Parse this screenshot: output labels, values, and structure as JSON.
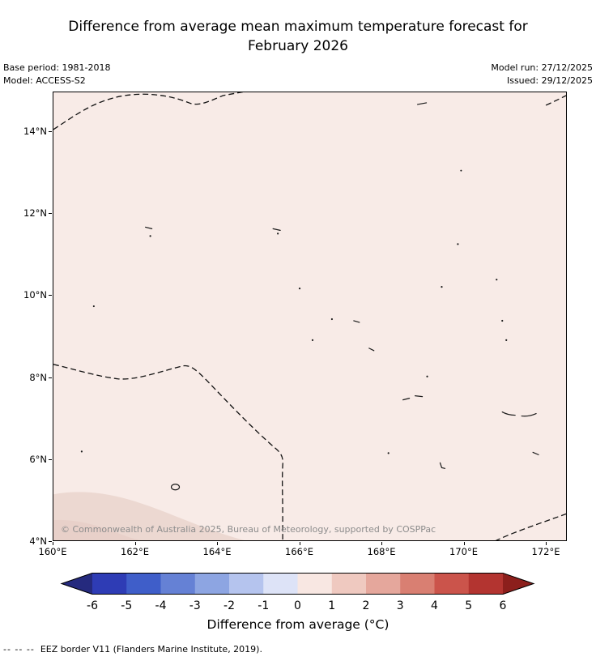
{
  "title": {
    "line1": "Difference from average mean maximum temperature forecast for",
    "line2": "February 2026"
  },
  "meta": {
    "base_period": "Base period: 1981-2018",
    "model": "Model: ACCESS-S2",
    "model_run": "Model run: 27/12/2025",
    "issued": "Issued: 29/12/2025"
  },
  "map": {
    "copyright": "© Commonwealth of Australia 2025, Bureau of Meteorology, supported by COSPPac",
    "lat_ticks": [
      "14°N",
      "12°N",
      "10°N",
      "8°N",
      "6°N",
      "4°N"
    ],
    "lon_ticks": [
      "160°E",
      "162°E",
      "164°E",
      "166°E",
      "168°E",
      "170°E",
      "172°E"
    ]
  },
  "colorbar": {
    "label": "Difference from average (°C)",
    "ticks": [
      "-6",
      "-5",
      "-4",
      "-3",
      "-2",
      "-1",
      "0",
      "1",
      "2",
      "3",
      "4",
      "5",
      "6"
    ],
    "colors": [
      "#2e3cb5",
      "#3f5ec9",
      "#6581d5",
      "#8da5e2",
      "#b5c4ee",
      "#dde3f7",
      "#f8e7e2",
      "#efc9c0",
      "#e5a79c",
      "#d97f72",
      "#cb544b",
      "#b33430"
    ],
    "arrow_left": "#252a7e",
    "arrow_right": "#8c1f1c"
  },
  "footer": {
    "dash_sample": "--  --  --",
    "label": "EEZ border V11 (Flanders Marine Institute, 2019)."
  },
  "chart_data": {
    "type": "heatmap",
    "title": "Difference from average mean maximum temperature forecast for February 2026",
    "subtitle": "Model: ACCESS-S2, base period 1981-2018, model run 27/12/2025, issued 29/12/2025",
    "x_axis": {
      "label": "",
      "ticks": [
        "160°E",
        "162°E",
        "164°E",
        "166°E",
        "168°E",
        "170°E",
        "172°E"
      ],
      "range_deg_east": [
        160,
        172.5
      ]
    },
    "y_axis": {
      "label": "",
      "ticks": [
        "14°N",
        "12°N",
        "10°N",
        "8°N",
        "6°N",
        "4°N"
      ],
      "range_deg_north": [
        4,
        15
      ]
    },
    "colorbar": {
      "label": "Difference from average (°C)",
      "tick_values": [
        -6,
        -5,
        -4,
        -3,
        -2,
        -1,
        0,
        1,
        2,
        3,
        4,
        5,
        6
      ],
      "extend": "both"
    },
    "field_summary": "Nearly uniform positive anomaly of approximately +0.5 °C (0 to +1 bin) across the whole mapped ocean region; a slightly warmer patch (+1 to +2 bin) near the south-west corner around 160-163°E, 4-5°N.",
    "overlays": [
      "dashed EEZ border lines",
      "small island coastlines"
    ],
    "grid": false,
    "legend_position": "bottom"
  }
}
